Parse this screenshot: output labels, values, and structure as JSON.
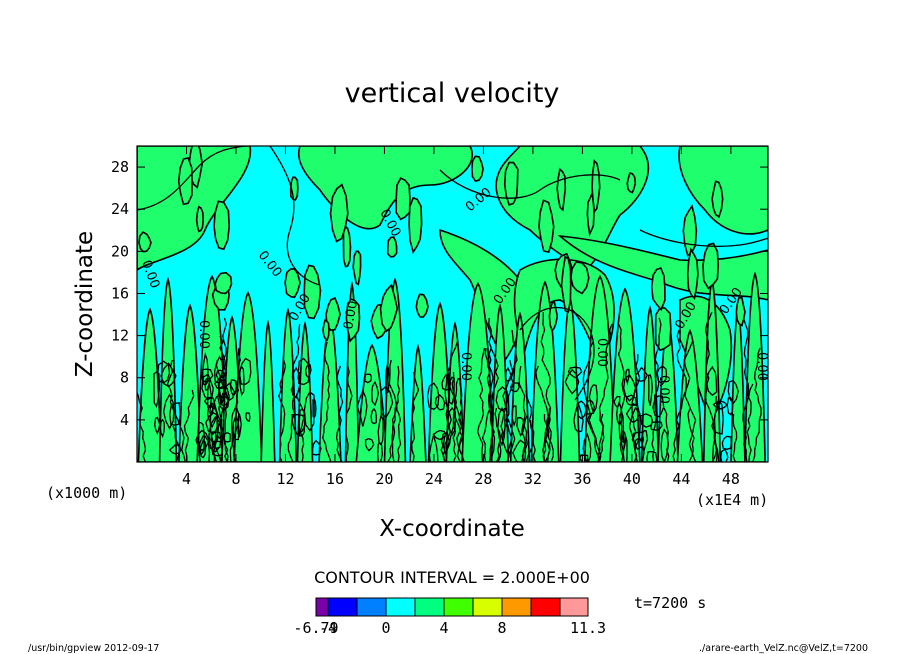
{
  "chart_data": {
    "type": "heatmap",
    "title": "vertical velocity",
    "xlabel": "X-coordinate",
    "ylabel": "Z-coordinate",
    "x_unit": "(x1E4 m)",
    "y_unit": "(x1000 m)",
    "x_ticks": [
      4,
      8,
      12,
      16,
      20,
      24,
      28,
      32,
      36,
      40,
      44,
      48
    ],
    "y_ticks": [
      4,
      8,
      12,
      16,
      20,
      24,
      28
    ],
    "xlim": [
      0,
      51
    ],
    "ylim": [
      0,
      30
    ],
    "contour_interval_text": "CONTOUR INTERVAL = 2.000E+00",
    "contour_label": "0.00",
    "time_label": "t=7200 s",
    "colorbar": {
      "colors": [
        "#7a00a8",
        "#0000ff",
        "#0080ff",
        "#00ffff",
        "#00ff80",
        "#40ff00",
        "#d8ff00",
        "#ff9900",
        "#ff0000",
        "#ff9999"
      ],
      "tick_labels": [
        "-6.79",
        "-4",
        "0",
        "4",
        "8",
        "11.3"
      ],
      "range": [
        -6.79,
        11.3
      ]
    },
    "colors": {
      "negative_fill": "#00ffff",
      "positive_fill": "#1fff6e",
      "contour_line": "#000000"
    }
  },
  "footer": {
    "left": "/usr/bin/gpview   2012-09-17",
    "right": "./arare-earth_VelZ.nc@VelZ,t=7200"
  }
}
